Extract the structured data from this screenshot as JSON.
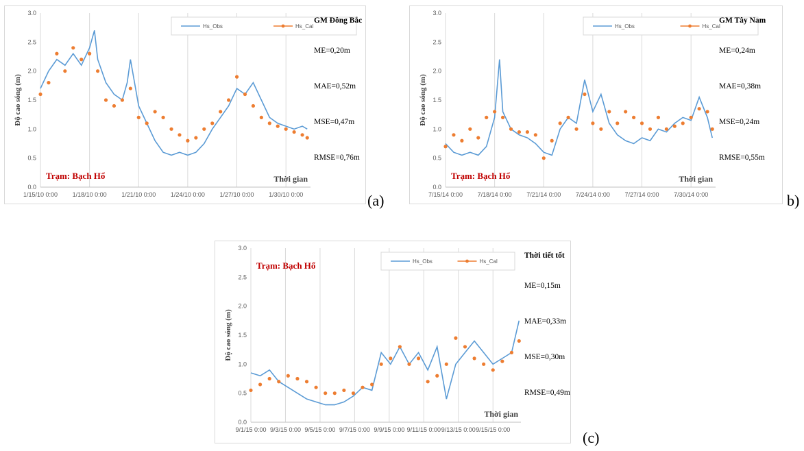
{
  "panel_labels": [
    "(a)",
    "b)",
    "(c)"
  ],
  "chart_data": [
    {
      "type": "line",
      "ylabel": "Độ cao sóng (m)",
      "xlabel": "Thời gian",
      "station": "Trạm: Bạch Hổ",
      "stats_title": "GM Đông Bắc",
      "stats": [
        "ME=0,20m",
        "MAE=0,52m",
        "MSE=0,47m",
        "RMSE=0,76m"
      ],
      "ylim": [
        0,
        3
      ],
      "yticks": [
        "0.0",
        "0.5",
        "1.0",
        "1.5",
        "2.0",
        "2.5",
        "3.0"
      ],
      "xticks": [
        "1/15/10 0:00",
        "1/18/10 0:00",
        "1/21/10 0:00",
        "1/24/10 0:00",
        "1/27/10 0:00",
        "1/30/10 0:00"
      ],
      "xlim": [
        0,
        16.5
      ],
      "grid": "vertical",
      "legend_position": "top-right",
      "series": [
        {
          "name": "Hs_Obs",
          "color": "#5b9bd5",
          "style": "line",
          "x": [
            0,
            0.5,
            1,
            1.5,
            2,
            2.5,
            3,
            3.3,
            3.5,
            4,
            4.5,
            5,
            5.3,
            5.5,
            6,
            6.5,
            7,
            7.5,
            8,
            8.5,
            9,
            9.5,
            10,
            10.5,
            11,
            11.5,
            12,
            12.5,
            13,
            13.5,
            14,
            14.5,
            15,
            15.5,
            16,
            16.3
          ],
          "y": [
            1.7,
            2.0,
            2.2,
            2.1,
            2.3,
            2.1,
            2.4,
            2.7,
            2.2,
            1.8,
            1.6,
            1.5,
            1.8,
            2.2,
            1.4,
            1.1,
            0.8,
            0.6,
            0.55,
            0.6,
            0.55,
            0.6,
            0.75,
            1.0,
            1.2,
            1.4,
            1.7,
            1.6,
            1.8,
            1.5,
            1.2,
            1.1,
            1.05,
            1.0,
            1.05,
            1.0
          ]
        },
        {
          "name": "Hs_Cal",
          "color": "#ed7d31",
          "style": "markers",
          "x": [
            0,
            0.5,
            1,
            1.5,
            2,
            2.5,
            3,
            3.5,
            4,
            4.5,
            5,
            5.5,
            6,
            6.5,
            7,
            7.5,
            8,
            8.5,
            9,
            9.5,
            10,
            10.5,
            11,
            11.5,
            12,
            12.5,
            13,
            13.5,
            14,
            14.5,
            15,
            15.5,
            16,
            16.3
          ],
          "y": [
            1.6,
            1.8,
            2.3,
            2.0,
            2.4,
            2.2,
            2.3,
            2.0,
            1.5,
            1.4,
            1.5,
            1.7,
            1.2,
            1.1,
            1.3,
            1.2,
            1.0,
            0.9,
            0.8,
            0.85,
            1.0,
            1.1,
            1.3,
            1.5,
            1.9,
            1.6,
            1.4,
            1.2,
            1.1,
            1.05,
            1.0,
            0.95,
            0.9,
            0.85
          ]
        }
      ]
    },
    {
      "type": "line",
      "ylabel": "Độ cao sóng (m)",
      "xlabel": "Thời gian",
      "station": "Trạm: Bạch Hổ",
      "stats_title": "GM Tây Nam",
      "stats": [
        "ME=0,24m",
        "MAE=0,38m",
        "MSE=0,24m",
        "RMSE=0,55m"
      ],
      "ylim": [
        0,
        3
      ],
      "yticks": [
        "0.0",
        "0.5",
        "1.0",
        "1.5",
        "2.0",
        "2.5",
        "3.0"
      ],
      "xticks": [
        "7/15/14 0:00",
        "7/18/14 0:00",
        "7/21/14 0:00",
        "7/24/14 0:00",
        "7/27/14 0:00",
        "7/30/14 0:00"
      ],
      "xlim": [
        0,
        16.5
      ],
      "grid": "vertical",
      "legend_position": "top-right",
      "series": [
        {
          "name": "Hs_Obs",
          "color": "#5b9bd5",
          "style": "line",
          "x": [
            0,
            0.5,
            1,
            1.5,
            2,
            2.5,
            3,
            3.3,
            3.5,
            4,
            4.5,
            5,
            5.5,
            6,
            6.5,
            7,
            7.5,
            8,
            8.5,
            9,
            9.5,
            10,
            10.5,
            11,
            11.5,
            12,
            12.5,
            13,
            13.5,
            14,
            14.5,
            15,
            15.5,
            16,
            16.3
          ],
          "y": [
            0.75,
            0.6,
            0.55,
            0.6,
            0.55,
            0.7,
            1.2,
            2.2,
            1.3,
            1.0,
            0.9,
            0.85,
            0.75,
            0.6,
            0.55,
            1.0,
            1.2,
            1.1,
            1.85,
            1.3,
            1.6,
            1.1,
            0.9,
            0.8,
            0.75,
            0.85,
            0.8,
            1.0,
            0.95,
            1.1,
            1.2,
            1.15,
            1.55,
            1.2,
            0.85
          ]
        },
        {
          "name": "Hs_Cal",
          "color": "#ed7d31",
          "style": "markers",
          "x": [
            0,
            0.5,
            1,
            1.5,
            2,
            2.5,
            3,
            3.5,
            4,
            4.5,
            5,
            5.5,
            6,
            6.5,
            7,
            7.5,
            8,
            8.5,
            9,
            9.5,
            10,
            10.5,
            11,
            11.5,
            12,
            12.5,
            13,
            13.5,
            14,
            14.5,
            15,
            15.5,
            16,
            16.3
          ],
          "y": [
            0.7,
            0.9,
            0.8,
            1.0,
            0.85,
            1.2,
            1.3,
            1.2,
            1.0,
            0.95,
            0.95,
            0.9,
            0.5,
            0.8,
            1.1,
            1.2,
            1.0,
            1.6,
            1.1,
            1.0,
            1.3,
            1.1,
            1.3,
            1.2,
            1.1,
            1.0,
            1.2,
            1.0,
            1.05,
            1.1,
            1.2,
            1.35,
            1.3,
            1.0
          ]
        }
      ]
    },
    {
      "type": "line",
      "ylabel": "Độ cao sóng (m)",
      "xlabel": "Thời gian",
      "station": "Trạm: Bạch Hổ",
      "stats_title": "Thời tiết tốt",
      "stats": [
        "ME=0,15m",
        "MAE=0,33m",
        "MSE=0,30m",
        "RMSE=0,49m"
      ],
      "ylim": [
        0,
        3
      ],
      "yticks": [
        "0.0",
        "0.5",
        "1.0",
        "1.5",
        "2.0",
        "2.5",
        "3.0"
      ],
      "xticks": [
        "9/1/15 0:00",
        "9/3/15 0:00",
        "9/5/15 0:00",
        "9/7/15 0:00",
        "9/9/15 0:00",
        "9/11/15 0:00",
        "9/13/15 0:00",
        "9/15/15 0:00"
      ],
      "xlim": [
        0,
        14.5
      ],
      "grid": "vertical",
      "legend_position": "top-right",
      "series": [
        {
          "name": "Hs_Obs",
          "color": "#5b9bd5",
          "style": "line",
          "x": [
            0,
            0.5,
            1,
            1.5,
            2,
            2.5,
            3,
            3.5,
            4,
            4.5,
            5,
            5.5,
            6,
            6.5,
            7,
            7.5,
            8,
            8.5,
            9,
            9.5,
            10,
            10.5,
            11,
            11.5,
            12,
            12.5,
            13,
            13.5,
            14,
            14.4
          ],
          "y": [
            0.85,
            0.8,
            0.9,
            0.7,
            0.6,
            0.5,
            0.4,
            0.35,
            0.3,
            0.3,
            0.35,
            0.45,
            0.6,
            0.55,
            1.2,
            1.0,
            1.3,
            1.0,
            1.2,
            0.9,
            1.3,
            0.4,
            1.0,
            1.2,
            1.4,
            1.2,
            1.0,
            1.1,
            1.2,
            1.75
          ]
        },
        {
          "name": "Hs_Cal",
          "color": "#ed7d31",
          "style": "markers",
          "x": [
            0,
            0.5,
            1,
            1.5,
            2,
            2.5,
            3,
            3.5,
            4,
            4.5,
            5,
            5.5,
            6,
            6.5,
            7,
            7.5,
            8,
            8.5,
            9,
            9.5,
            10,
            10.5,
            11,
            11.5,
            12,
            12.5,
            13,
            13.5,
            14,
            14.4
          ],
          "y": [
            0.55,
            0.65,
            0.75,
            0.7,
            0.8,
            0.75,
            0.7,
            0.6,
            0.5,
            0.5,
            0.55,
            0.5,
            0.6,
            0.65,
            1.0,
            1.1,
            1.3,
            1.0,
            1.1,
            0.7,
            0.8,
            1.0,
            1.45,
            1.3,
            1.1,
            1.0,
            0.9,
            1.05,
            1.2,
            1.4
          ]
        }
      ]
    }
  ]
}
